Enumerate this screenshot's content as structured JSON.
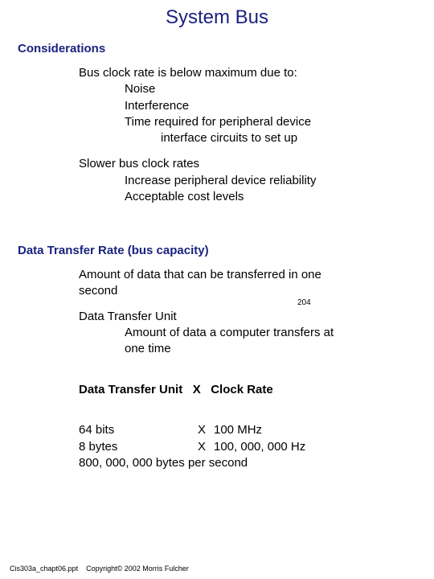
{
  "title": "System Bus",
  "colors": {
    "heading": "#1a237e",
    "body": "#000000",
    "background": "#ffffff"
  },
  "section1": {
    "heading": "Considerations",
    "line1": "Bus clock rate is below maximum due to:",
    "sub1": "Noise",
    "sub2": "Interference",
    "sub3a": "Time required for peripheral device",
    "sub3b": "interface circuits to set up",
    "line2": "Slower bus clock rates",
    "sub4": "Increase peripheral device reliability",
    "sub5": "Acceptable cost levels"
  },
  "section2": {
    "heading": "Data Transfer Rate (bus capacity)",
    "line1a": "Amount of data that can be transferred in one",
    "line1b": "second",
    "page_num": "204",
    "line2": "Data Transfer Unit",
    "sub1a": "Amount of data a computer transfers at",
    "sub1b": "one time",
    "formula": "Data Transfer Unit   X   Clock Rate",
    "calc1_a": "64 bits",
    "calc1_x": "X",
    "calc1_b": "100 MHz",
    "calc2_a": "8 bytes",
    "calc2_x": "X",
    "calc2_b": "100, 000, 000 Hz",
    "calc3": "800, 000, 000 bytes per second"
  },
  "footer": "Cis303a_chapt06.ppt    Copyright© 2002 Morris Fulcher"
}
